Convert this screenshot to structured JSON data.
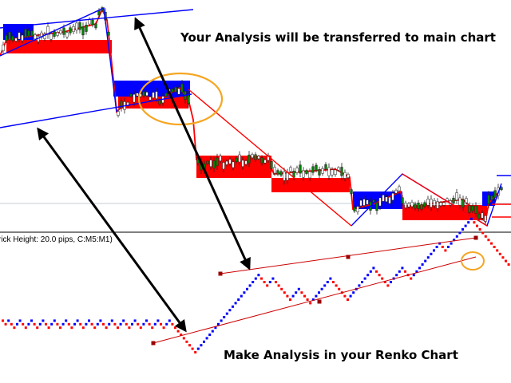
{
  "main_chart": {
    "caption": "Your Analysis will be transferred to main chart",
    "colors": {
      "upper_box": "#0000ff",
      "lower_box": "#ff0000",
      "candle": "#008000",
      "trend_line": "#0000ff",
      "down_line": "#ff0000",
      "highlight": "#f5a623"
    }
  },
  "renko_chart": {
    "header": "rick Height: 20.0 pips, C:M5:M1)",
    "caption": "Make Analysis in your Renko Chart",
    "colors": {
      "up_brick": "#0000ff",
      "down_brick": "#ff0000",
      "channel_line": "#cc0000",
      "highlight": "#f5a623"
    }
  },
  "arrows": {
    "color": "#000000"
  }
}
